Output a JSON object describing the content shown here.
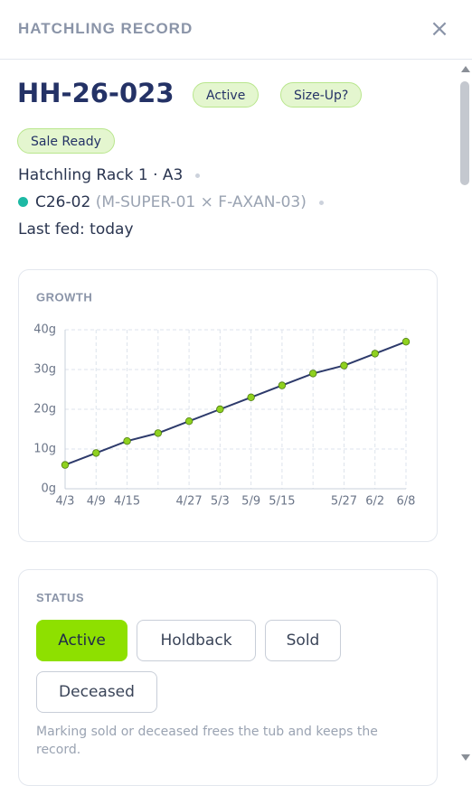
{
  "header": {
    "title": "HATCHLING RECORD"
  },
  "record": {
    "id": "HH-26-023",
    "badges": [
      "Active",
      "Size-Up?",
      "Sale Ready"
    ],
    "location": "Hatchling Rack 1 · A3",
    "clutch": "C26-02",
    "parents": "(M-SUPER-01 × F-AXAN-03)",
    "last_fed": "Last fed: today"
  },
  "chart_data": {
    "type": "line",
    "title": "GROWTH",
    "categories": [
      "4/3",
      "4/9",
      "4/15",
      null,
      "4/27",
      "5/3",
      "5/9",
      "5/15",
      null,
      "5/27",
      "6/2",
      "6/8"
    ],
    "values": [
      6,
      9,
      12,
      14,
      17,
      20,
      23,
      26,
      29,
      31,
      34,
      37
    ],
    "color": "#2d3a6b",
    "marker_color": "#8fd11f",
    "ylim": [
      0,
      40
    ],
    "yticks": [
      {
        "value": 0,
        "label": "0g"
      },
      {
        "value": 10,
        "label": "10g"
      },
      {
        "value": 20,
        "label": "20g"
      },
      {
        "value": 30,
        "label": "30g"
      },
      {
        "value": 40,
        "label": "40g"
      }
    ],
    "grid": true
  },
  "status": {
    "label": "STATUS",
    "options": [
      "Active",
      "Holdback",
      "Sold",
      "Deceased"
    ],
    "note": "Marking sold or deceased frees the tub and keeps the record."
  }
}
